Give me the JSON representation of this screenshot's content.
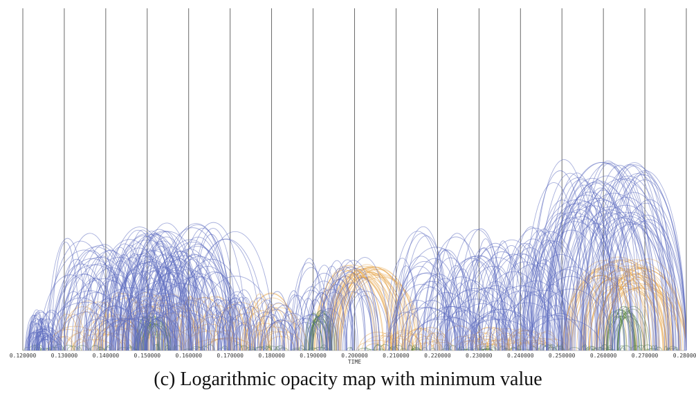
{
  "caption": "(c) Logarithmic opacity map with minimum value",
  "chart_data": {
    "type": "arc",
    "xlabel": "TIME",
    "ylabel": "",
    "title": "",
    "xlim": [
      0.12,
      0.28
    ],
    "tick_values": [
      0.12,
      0.13,
      0.14,
      0.15,
      0.16,
      0.17,
      0.18,
      0.19,
      0.2,
      0.21,
      0.22,
      0.23,
      0.24,
      0.25,
      0.26,
      0.27,
      0.28
    ],
    "tick_labels": [
      "0.120000",
      "0.130000",
      "0.140000",
      "0.150000",
      "0.160000",
      "0.170000",
      "0.180000",
      "0.190000",
      "0.200000",
      "0.210000",
      "0.220000",
      "0.230000",
      "0.240000",
      "0.250000",
      "0.260000",
      "0.270000",
      "0.280000"
    ],
    "grid": true,
    "colors": {
      "blue": "#5c6bc0",
      "orange": "#e8a54a",
      "green": "#4e7d3a",
      "grid": "#444444"
    },
    "arc_groups": [
      {
        "color": "blue",
        "start_range": [
          0.1205,
          0.124
        ],
        "span_range": [
          0.002,
          0.007
        ],
        "height_range": [
          0.05,
          0.2
        ],
        "count": 45
      },
      {
        "color": "blue",
        "start_range": [
          0.124,
          0.152
        ],
        "span_range": [
          0.006,
          0.022
        ],
        "height_range": [
          0.15,
          0.58
        ],
        "count": 110
      },
      {
        "color": "blue",
        "start_range": [
          0.138,
          0.163
        ],
        "span_range": [
          0.008,
          0.02
        ],
        "height_range": [
          0.35,
          0.62
        ],
        "count": 60
      },
      {
        "color": "blue",
        "start_range": [
          0.163,
          0.19
        ],
        "span_range": [
          0.004,
          0.01
        ],
        "height_range": [
          0.12,
          0.3
        ],
        "count": 55
      },
      {
        "color": "blue",
        "start_range": [
          0.184,
          0.199
        ],
        "span_range": [
          0.006,
          0.012
        ],
        "height_range": [
          0.25,
          0.45
        ],
        "count": 30
      },
      {
        "color": "blue",
        "start_range": [
          0.206,
          0.245
        ],
        "span_range": [
          0.006,
          0.02
        ],
        "height_range": [
          0.15,
          0.6
        ],
        "count": 120
      },
      {
        "color": "blue",
        "start_range": [
          0.24,
          0.263
        ],
        "span_range": [
          0.014,
          0.028
        ],
        "height_range": [
          0.6,
          0.92
        ],
        "count": 70
      },
      {
        "color": "orange",
        "start_range": [
          0.126,
          0.18
        ],
        "span_range": [
          0.003,
          0.014
        ],
        "height_range": [
          0.05,
          0.28
        ],
        "count": 110
      },
      {
        "color": "orange",
        "start_range": [
          0.19,
          0.197
        ],
        "span_range": [
          0.014,
          0.02
        ],
        "height_range": [
          0.35,
          0.42
        ],
        "count": 35
      },
      {
        "color": "orange",
        "start_range": [
          0.2,
          0.245
        ],
        "span_range": [
          0.003,
          0.01
        ],
        "height_range": [
          0.03,
          0.12
        ],
        "count": 70
      },
      {
        "color": "orange",
        "start_range": [
          0.25,
          0.262
        ],
        "span_range": [
          0.014,
          0.024
        ],
        "height_range": [
          0.3,
          0.45
        ],
        "count": 50
      },
      {
        "color": "green",
        "start_range": [
          0.147,
          0.15
        ],
        "span_range": [
          0.004,
          0.007
        ],
        "height_range": [
          0.12,
          0.18
        ],
        "count": 20
      },
      {
        "color": "green",
        "start_range": [
          0.188,
          0.19
        ],
        "span_range": [
          0.004,
          0.006
        ],
        "height_range": [
          0.14,
          0.2
        ],
        "count": 18
      },
      {
        "color": "green",
        "start_range": [
          0.26,
          0.264
        ],
        "span_range": [
          0.004,
          0.008
        ],
        "height_range": [
          0.16,
          0.22
        ],
        "count": 20
      },
      {
        "color": "green",
        "start_range": [
          0.12,
          0.278
        ],
        "span_range": [
          0.0005,
          0.003
        ],
        "height_range": [
          0.005,
          0.03
        ],
        "count": 160
      }
    ],
    "seed": 7
  }
}
